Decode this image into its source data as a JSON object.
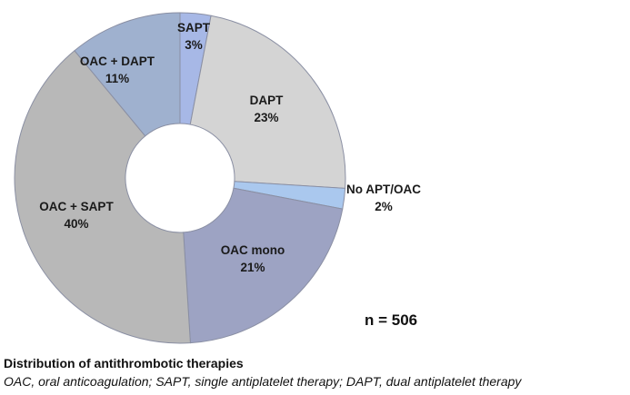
{
  "chart_data": {
    "type": "pie",
    "donut": true,
    "slices": [
      {
        "label": "SAPT",
        "value": 3,
        "pct_label": "3%",
        "color": "#a7b8e6"
      },
      {
        "label": "DAPT",
        "value": 23,
        "pct_label": "23%",
        "color": "#d4d4d4"
      },
      {
        "label": "No APT/OAC",
        "value": 2,
        "pct_label": "2%",
        "color": "#aac8ee"
      },
      {
        "label": "OAC mono",
        "value": 21,
        "pct_label": "21%",
        "color": "#9da3c3"
      },
      {
        "label": "OAC + SAPT",
        "value": 40,
        "pct_label": "40%",
        "color": "#b8b8b8"
      },
      {
        "label": "OAC + DAPT",
        "value": 11,
        "pct_label": "11%",
        "color": "#9fb1cf"
      }
    ],
    "total_label": "n = 506"
  },
  "caption": {
    "title": "Distribution of antithrombotic therapies",
    "text": "OAC, oral anticoagulation; SAPT, single antiplatelet therapy; DAPT, dual antiplatelet therapy"
  }
}
